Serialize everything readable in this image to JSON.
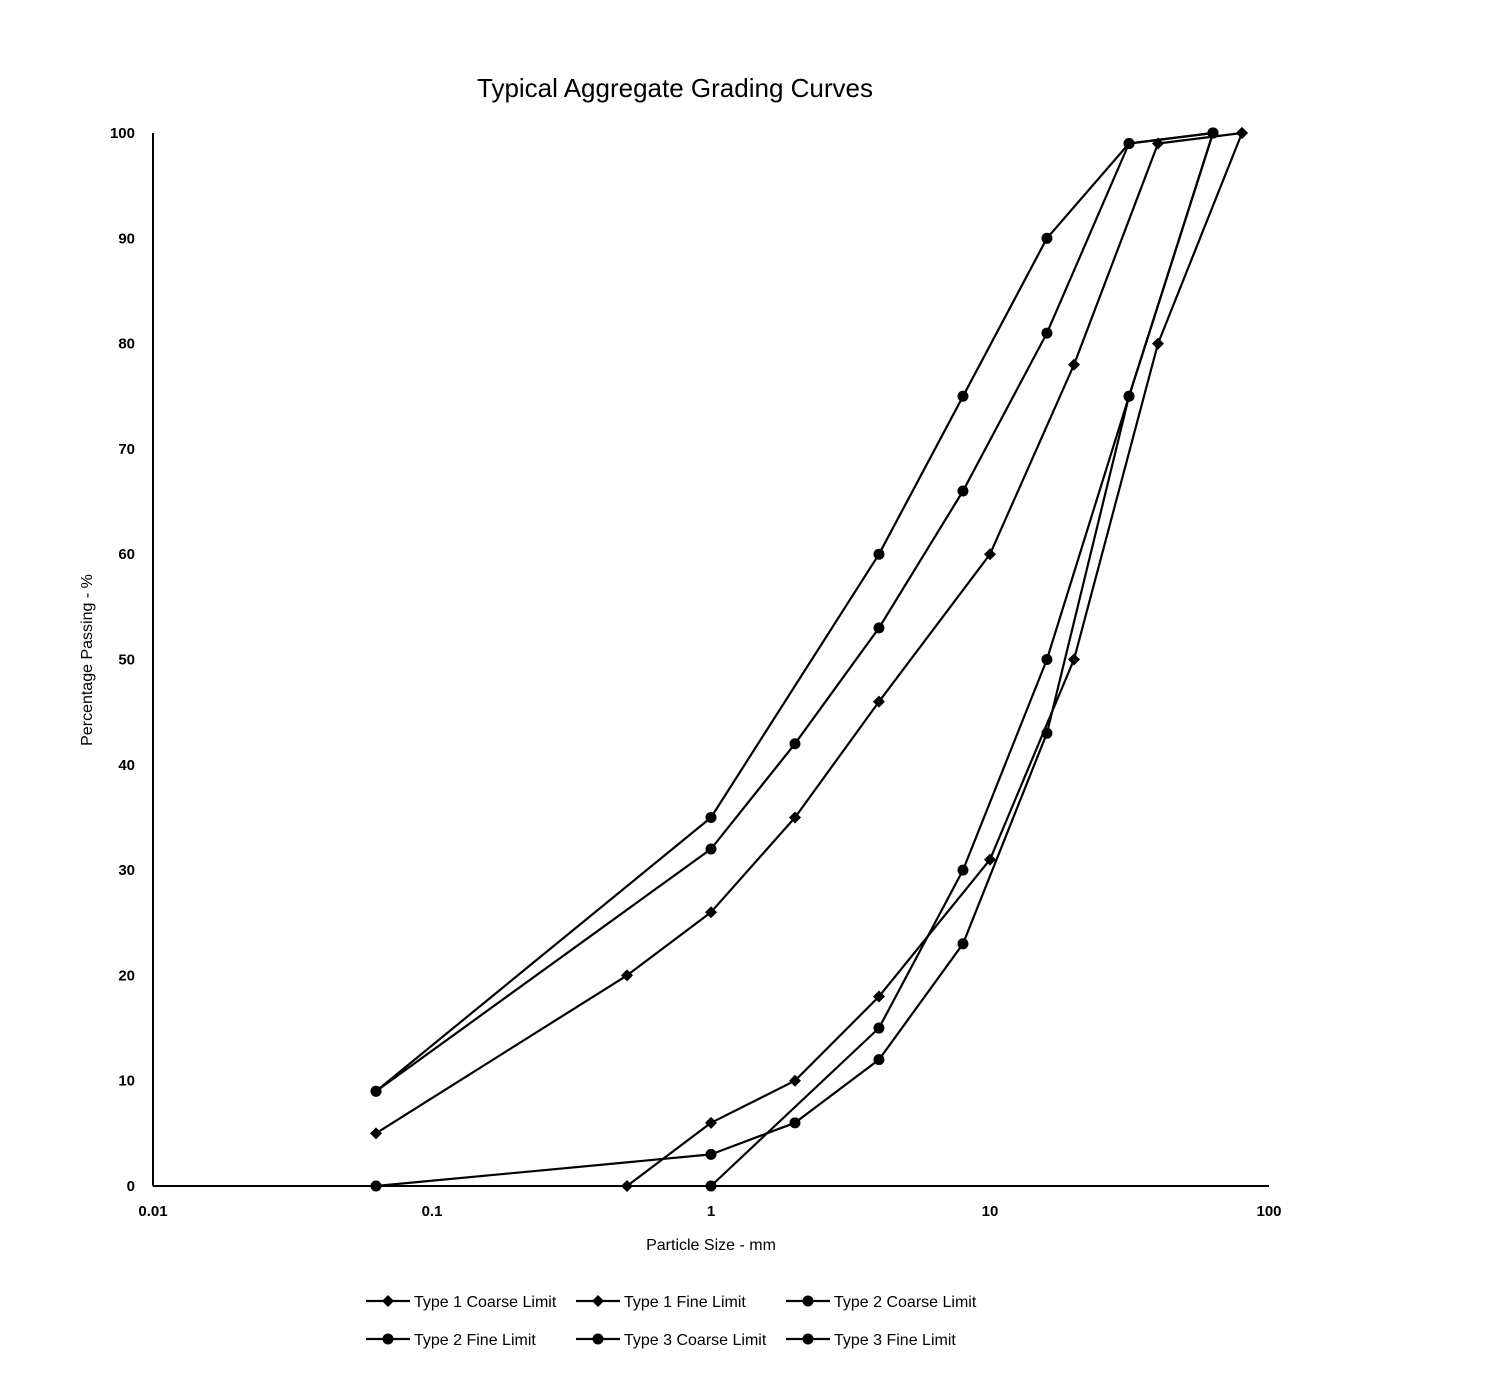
{
  "chart_data": {
    "type": "line",
    "title": "Typical Aggregate Grading Curves",
    "xlabel": "Particle Size - mm",
    "ylabel": "Percentage Passing - %",
    "xscale": "log",
    "xlim": [
      0.01,
      100
    ],
    "ylim": [
      0,
      100
    ],
    "x_ticks": [
      0.01,
      0.1,
      1,
      10,
      100
    ],
    "x_tick_labels": [
      "0.01",
      "0.1",
      "1",
      "10",
      "100"
    ],
    "y_ticks": [
      0,
      10,
      20,
      30,
      40,
      50,
      60,
      70,
      80,
      90,
      100
    ],
    "y_tick_labels": [
      "0",
      "10",
      "20",
      "30",
      "40",
      "50",
      "60",
      "70",
      "80",
      "90",
      "100"
    ],
    "grid": false,
    "legend_position": "bottom",
    "series": [
      {
        "name": "Type 1 Coarse Limit",
        "marker": "diamond",
        "points": [
          [
            0.5,
            0
          ],
          [
            1,
            6
          ],
          [
            2,
            10
          ],
          [
            4,
            18
          ],
          [
            10,
            31
          ],
          [
            20,
            50
          ],
          [
            40,
            80
          ],
          [
            80,
            100
          ]
        ]
      },
      {
        "name": "Type 1 Fine Limit",
        "marker": "diamond",
        "points": [
          [
            0.063,
            5
          ],
          [
            0.5,
            20
          ],
          [
            1,
            26
          ],
          [
            2,
            35
          ],
          [
            4,
            46
          ],
          [
            10,
            60
          ],
          [
            20,
            78
          ],
          [
            40,
            99
          ],
          [
            80,
            100
          ]
        ]
      },
      {
        "name": "Type 2 Coarse Limit",
        "marker": "circle",
        "points": [
          [
            0.063,
            0
          ],
          [
            1,
            3
          ],
          [
            2,
            6
          ],
          [
            4,
            12
          ],
          [
            8,
            23
          ],
          [
            16,
            43
          ],
          [
            31.5,
            75
          ],
          [
            63,
            100
          ]
        ]
      },
      {
        "name": "Type 2 Fine Limit",
        "marker": "circle",
        "points": [
          [
            0.063,
            9
          ],
          [
            1,
            32
          ],
          [
            2,
            42
          ],
          [
            4,
            53
          ],
          [
            8,
            66
          ],
          [
            16,
            81
          ],
          [
            31.5,
            99
          ],
          [
            63,
            100
          ]
        ]
      },
      {
        "name": "Type 3 Coarse Limit",
        "marker": "circle",
        "points": [
          [
            1,
            0
          ],
          [
            4,
            15
          ],
          [
            8,
            30
          ],
          [
            16,
            50
          ],
          [
            31.5,
            75
          ],
          [
            63,
            100
          ]
        ]
      },
      {
        "name": "Type 3 Fine Limit",
        "marker": "circle",
        "points": [
          [
            0.063,
            9
          ],
          [
            1,
            35
          ],
          [
            4,
            60
          ],
          [
            8,
            75
          ],
          [
            16,
            90
          ],
          [
            31.5,
            99
          ],
          [
            63,
            100
          ]
        ]
      }
    ]
  },
  "colors": {
    "line": "#000000",
    "axis": "#000000",
    "background": "#ffffff"
  }
}
